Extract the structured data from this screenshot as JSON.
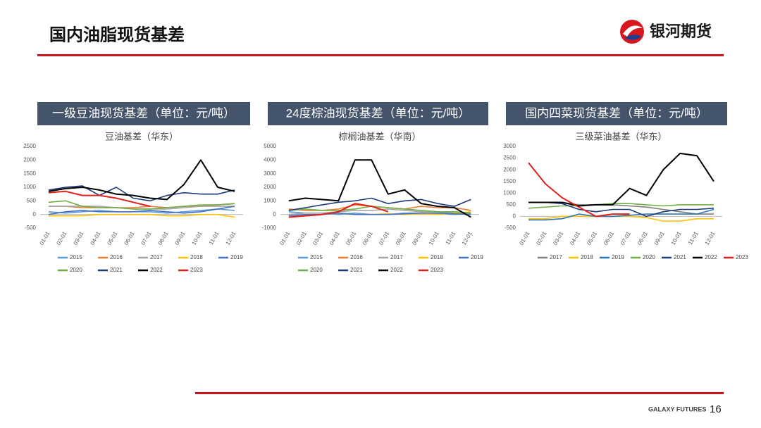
{
  "header": {
    "title": "国内油脂现货基差",
    "logo": "银河期货"
  },
  "footer": {
    "brand": "GALAXY FUTURES",
    "page": "16"
  },
  "chart_data": [
    {
      "type": "line",
      "heading": "一级豆油现货基差（单位：元/吨）",
      "title": "豆油基差（华东）",
      "categories": [
        "01-01",
        "02-01",
        "03-01",
        "04-01",
        "05-01",
        "06-01",
        "07-01",
        "08-01",
        "09-01",
        "10-01",
        "11-01",
        "12-01"
      ],
      "ylim": [
        -500,
        2500
      ],
      "yticks": [
        -500,
        0,
        500,
        1000,
        1500,
        2000,
        2500
      ],
      "grid": false,
      "series": [
        {
          "name": "2015",
          "color": "#5b9bd5",
          "values": [
            100,
            50,
            100,
            150,
            100,
            100,
            100,
            50,
            100,
            150,
            200,
            150
          ]
        },
        {
          "name": "2016",
          "color": "#ed7d31",
          "values": [
            300,
            300,
            250,
            250,
            250,
            250,
            300,
            250,
            300,
            300,
            350,
            400
          ]
        },
        {
          "name": "2017",
          "color": "#a5a5a5",
          "values": [
            300,
            300,
            300,
            300,
            250,
            200,
            200,
            200,
            250,
            300,
            300,
            300
          ]
        },
        {
          "name": "2018",
          "color": "#ffc000",
          "values": [
            -50,
            -50,
            -50,
            0,
            0,
            0,
            0,
            -50,
            -50,
            0,
            0,
            -100
          ]
        },
        {
          "name": "2019",
          "color": "#4472c4",
          "values": [
            0,
            100,
            150,
            100,
            100,
            100,
            150,
            100,
            50,
            100,
            200,
            300
          ]
        },
        {
          "name": "2020",
          "color": "#70ad47",
          "values": [
            450,
            500,
            300,
            250,
            250,
            200,
            200,
            250,
            300,
            350,
            350,
            400
          ]
        },
        {
          "name": "2021",
          "color": "#1f3a7a",
          "values": [
            900,
            1000,
            1050,
            700,
            1000,
            600,
            500,
            700,
            800,
            750,
            750,
            900
          ]
        },
        {
          "name": "2022",
          "color": "#000000",
          "values": [
            850,
            950,
            1000,
            900,
            750,
            700,
            600,
            550,
            1100,
            2000,
            1000,
            850
          ]
        },
        {
          "name": "2023",
          "color": "#e0201b",
          "values": [
            800,
            850,
            700,
            700,
            600,
            450,
            300,
            null,
            null,
            null,
            null,
            null
          ]
        }
      ]
    },
    {
      "type": "line",
      "heading": "24度棕油现货基差（单位：元/吨）",
      "title": "棕榈油基差（华南）",
      "categories": [
        "01-01",
        "02-01",
        "03-01",
        "04-01",
        "05-01",
        "06-01",
        "07-01",
        "08-01",
        "09-01",
        "10-01",
        "11-01",
        "12-01"
      ],
      "ylim": [
        -1000,
        5000
      ],
      "yticks": [
        -1000,
        0,
        1000,
        2000,
        3000,
        4000,
        5000
      ],
      "grid": false,
      "series": [
        {
          "name": "2015",
          "color": "#5b9bd5",
          "values": [
            200,
            100,
            100,
            0,
            100,
            0,
            0,
            100,
            100,
            50,
            0,
            50
          ]
        },
        {
          "name": "2016",
          "color": "#ed7d31",
          "values": [
            400,
            300,
            300,
            400,
            700,
            600,
            500,
            400,
            600,
            500,
            500,
            300
          ]
        },
        {
          "name": "2017",
          "color": "#a5a5a5",
          "values": [
            0,
            100,
            100,
            200,
            300,
            300,
            400,
            300,
            200,
            200,
            100,
            100
          ]
        },
        {
          "name": "2018",
          "color": "#ffc000",
          "values": [
            -200,
            -100,
            0,
            100,
            0,
            0,
            50,
            0,
            50,
            0,
            100,
            200
          ]
        },
        {
          "name": "2019",
          "color": "#4472c4",
          "values": [
            -100,
            0,
            0,
            100,
            0,
            0,
            0,
            50,
            100,
            100,
            50,
            0
          ]
        },
        {
          "name": "2020",
          "color": "#70ad47",
          "values": [
            300,
            400,
            300,
            300,
            400,
            600,
            500,
            400,
            300,
            200,
            200,
            100
          ]
        },
        {
          "name": "2021",
          "color": "#1f3a7a",
          "values": [
            300,
            500,
            700,
            900,
            1000,
            1200,
            800,
            1000,
            1100,
            800,
            600,
            1100
          ]
        },
        {
          "name": "2022",
          "color": "#000000",
          "values": [
            1000,
            1200,
            1100,
            1000,
            4000,
            4000,
            1500,
            1800,
            800,
            600,
            500,
            -200
          ]
        },
        {
          "name": "2023",
          "color": "#e0201b",
          "values": [
            -200,
            -100,
            0,
            200,
            800,
            600,
            200,
            null,
            null,
            null,
            null,
            null
          ]
        }
      ]
    },
    {
      "type": "line",
      "heading": "国内四菜现货基差（单位：元/吨）",
      "title": "三级菜油基差（华东）",
      "categories": [
        "01-01",
        "02-01",
        "03-01",
        "04-01",
        "05-01",
        "06-01",
        "07-01",
        "08-01",
        "09-01",
        "10-01",
        "11-01",
        "12-01"
      ],
      "ylim": [
        -500,
        3000
      ],
      "yticks": [
        -500,
        0,
        500,
        1000,
        1500,
        2000,
        2500,
        3000
      ],
      "grid": false,
      "series": [
        {
          "name": "2017",
          "color": "#7f7f7f",
          "values": [
            600,
            600,
            600,
            500,
            500,
            500,
            450,
            400,
            300,
            200,
            100,
            100
          ]
        },
        {
          "name": "2018",
          "color": "#ffc000",
          "values": [
            -100,
            -100,
            0,
            0,
            0,
            0,
            0,
            -50,
            -200,
            -200,
            -100,
            -100
          ]
        },
        {
          "name": "2019",
          "color": "#2e75b6",
          "values": [
            -150,
            -150,
            -100,
            100,
            0,
            0,
            50,
            100,
            100,
            100,
            100,
            300
          ]
        },
        {
          "name": "2020",
          "color": "#70ad47",
          "values": [
            350,
            400,
            450,
            450,
            500,
            550,
            550,
            500,
            450,
            500,
            500,
            500
          ]
        },
        {
          "name": "2021",
          "color": "#1f3a7a",
          "values": [
            600,
            600,
            550,
            300,
            200,
            300,
            300,
            0,
            200,
            300,
            300,
            350
          ]
        },
        {
          "name": "2022",
          "color": "#000000",
          "values": [
            600,
            600,
            600,
            450,
            500,
            500,
            1200,
            900,
            2000,
            2700,
            2600,
            1500
          ]
        },
        {
          "name": "2023",
          "color": "#e0201b",
          "values": [
            2300,
            1400,
            800,
            400,
            0,
            100,
            100,
            null,
            null,
            null,
            null,
            null
          ]
        }
      ]
    }
  ]
}
